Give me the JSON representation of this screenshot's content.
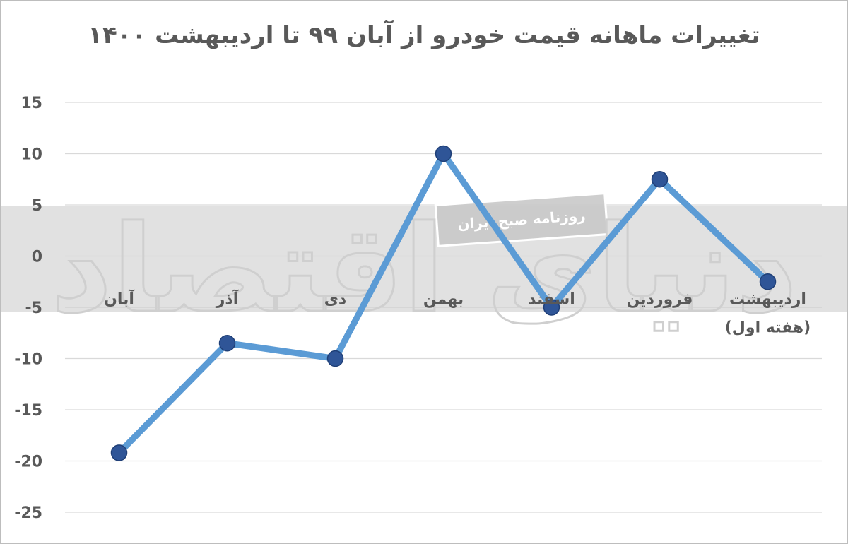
{
  "chart_data": {
    "type": "line",
    "title": "تغییرات ماهانه قیمت خودرو از آبان ۹۹ تا اردیبهشت ۱۴۰۰",
    "categories": [
      [
        "آبان"
      ],
      [
        "آذر"
      ],
      [
        "دی"
      ],
      [
        "بهمن"
      ],
      [
        "اسفند"
      ],
      [
        "فروردین"
      ],
      [
        "اردیبهشت",
        "(هفته اول)"
      ]
    ],
    "series": [
      {
        "values": [
          -19.2,
          -8.5,
          -10,
          10,
          -5,
          7.5,
          -2.5
        ]
      }
    ],
    "yticks": [
      "15",
      "10",
      "5",
      "0",
      "-5",
      "-10",
      "-15",
      "-20",
      "-25"
    ],
    "ylim": [
      -25,
      15
    ],
    "grid": true,
    "line_color": "#5b9bd5",
    "marker_color": "#2f5597"
  },
  "watermark": {
    "logo_text": "دنیای اقتصاد",
    "tagline": "روزنامه صبح ایران"
  }
}
